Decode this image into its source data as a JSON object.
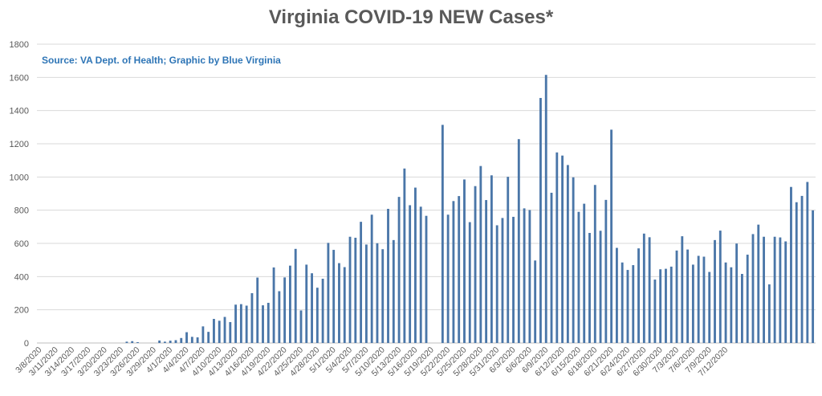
{
  "chart_data": {
    "type": "bar",
    "title": "Virginia COVID-19 NEW Cases*",
    "annotation": "Source: VA Dept. of Health; Graphic by Blue Virginia",
    "xlabel": "",
    "ylabel": "",
    "ylim": [
      0,
      1800
    ],
    "yticks": [
      0,
      200,
      400,
      600,
      800,
      1000,
      1200,
      1400,
      1600,
      1800
    ],
    "grid": true,
    "legend": "none",
    "bar_color": "#4a76a8",
    "start_date": "3/8/2020",
    "tick_labels": [
      "3/8/2020",
      "3/11/2020",
      "3/14/2020",
      "3/17/2020",
      "3/20/2020",
      "3/23/2020",
      "3/26/2020",
      "3/29/2020",
      "4/1/2020",
      "4/4/2020",
      "4/7/2020",
      "4/10/2020",
      "4/13/2020",
      "4/16/2020",
      "4/19/2020",
      "4/22/2020",
      "4/25/2020",
      "4/28/2020",
      "5/1/2020",
      "5/4/2020",
      "5/7/2020",
      "5/10/2020",
      "5/13/2020",
      "5/16/2020",
      "5/19/2020",
      "5/22/2020",
      "5/25/2020",
      "5/28/2020",
      "5/31/2020",
      "6/3/2020",
      "6/6/2020",
      "6/9/2020",
      "6/12/2020",
      "6/15/2020",
      "6/18/2020",
      "6/21/2020",
      "6/24/2020",
      "6/27/2020",
      "6/30/2020",
      "7/3/2020",
      "7/6/2020",
      "7/9/2020",
      "7/12/2020"
    ],
    "values": [
      0,
      0,
      0,
      0,
      0,
      0,
      0,
      0,
      0,
      0,
      0,
      0,
      0,
      0,
      0,
      0,
      8,
      11,
      5,
      0,
      0,
      0,
      15,
      8,
      14,
      17,
      30,
      65,
      37,
      34,
      100,
      67,
      145,
      134,
      157,
      126,
      231,
      234,
      225,
      300,
      394,
      227,
      242,
      455,
      312,
      395,
      466,
      567,
      196,
      472,
      420,
      333,
      387,
      603,
      561,
      481,
      457,
      640,
      634,
      730,
      593,
      773,
      601,
      565,
      808,
      620,
      880,
      1051,
      830,
      936,
      821,
      766,
      0,
      0,
      1314,
      773,
      855,
      885,
      985,
      728,
      945,
      1066,
      861,
      1010,
      709,
      753,
      1001,
      760,
      1228,
      811,
      801,
      497,
      1476,
      1615,
      905,
      1148,
      1129,
      1072,
      998,
      790,
      839,
      663,
      952,
      676,
      862,
      1285,
      573,
      485,
      440,
      469,
      570,
      659,
      637,
      382,
      444,
      447,
      460,
      557,
      643,
      563,
      472,
      525,
      520,
      428,
      620,
      677,
      485,
      456,
      599,
      416,
      532,
      656,
      713,
      640,
      353,
      640,
      636,
      612,
      940,
      848,
      886,
      970,
      799
    ]
  }
}
